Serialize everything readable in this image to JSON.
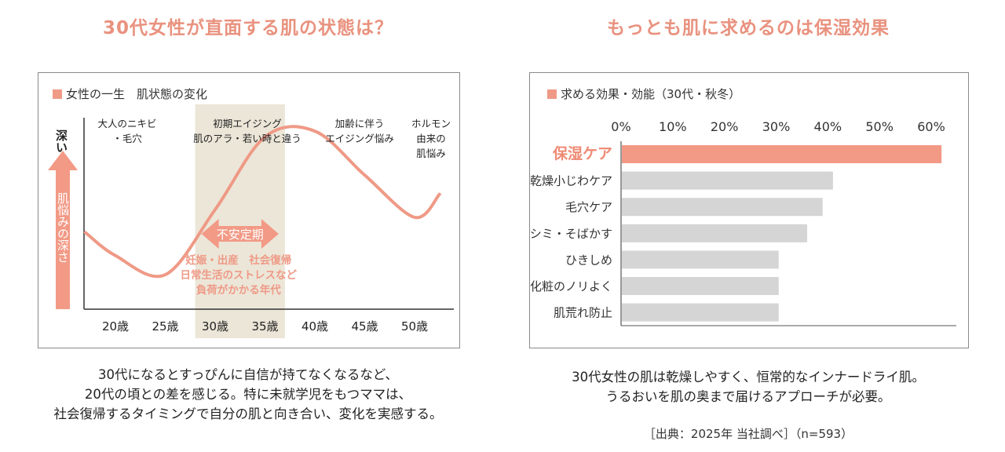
{
  "left": {
    "heading": "30代女性が直面する肌の状態は？",
    "caption": [
      "30代になるとすっぴんに自信が持てなくなるなど、",
      "20代の頃との差を感じる。特に未就学児をもつママは、",
      "社会復帰するタイミングで自分の肌と向き合い、変化を実感する。"
    ],
    "colors": {
      "curve": "#ef9a87",
      "band": "#ebe6d8",
      "arrow": "#f39a86",
      "emphasis": "#ef9a87"
    },
    "chart_data": {
      "type": "line",
      "title": "女性の一生　肌状態の変化",
      "ylabel_top": "深い",
      "ylabel": "肌悩みの深さ",
      "categories": [
        "20歳",
        "25歳",
        "30歳",
        "35歳",
        "40歳",
        "45歳",
        "50歳"
      ],
      "x": [
        17,
        20,
        25,
        30,
        35,
        40,
        45,
        50,
        52.5
      ],
      "values": [
        40,
        28,
        18,
        52,
        90,
        93,
        70,
        48,
        60
      ],
      "ylim": [
        0,
        100
      ],
      "annotations": [
        {
          "lines": [
            "大人のニキビ",
            "・毛穴"
          ]
        },
        {
          "lines": [
            "初期エイジング",
            "肌のアラ・若い時と違う"
          ]
        },
        {
          "lines": [
            "加齢に伴う",
            "エイジング悩み"
          ]
        },
        {
          "lines": [
            "ホルモン",
            "由来の",
            "肌悩み"
          ]
        }
      ],
      "band": {
        "x_range": [
          28,
          37
        ],
        "arrow_label": "不安定期",
        "note_lines": [
          "妊娠・出産　社会復帰",
          "日常生活のストレスなど",
          "負荷がかかる年代"
        ]
      }
    }
  },
  "right": {
    "heading": "もっとも肌に求めるのは保湿効果",
    "caption": [
      "30代女性の肌は乾燥しやすく、恒常的なインナードライ肌。",
      "うるおいを肌の奥まで届けるアプローチが必要。"
    ],
    "source": "［出典：2025年 当社調べ］（n=593）",
    "colors": {
      "highlight": "#f39a86",
      "bar": "#d5d5d5",
      "highlight_text": "#ef8a74"
    },
    "chart_data": {
      "type": "bar",
      "orientation": "horizontal",
      "title": "求める効果・効能（30代・秋冬）",
      "categories": [
        "保湿ケア",
        "乾燥小じわケア",
        "毛穴ケア",
        "シミ・そばかす",
        "ひきしめ",
        "化粧のノリよく",
        "肌荒れ防止"
      ],
      "values": [
        62,
        41,
        39,
        36,
        30.5,
        30.5,
        30.5
      ],
      "xlim": [
        0,
        62
      ],
      "tick_labels": [
        "0%",
        "10%",
        "20%",
        "30%",
        "40%",
        "50%",
        "60%"
      ],
      "highlight_index": 0
    }
  }
}
